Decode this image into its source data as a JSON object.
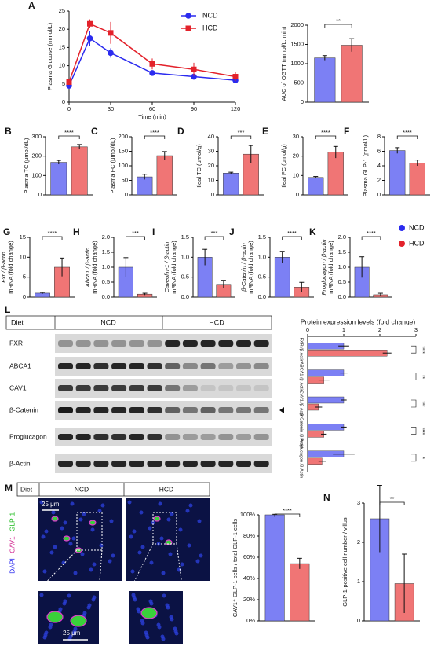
{
  "chart_data": [
    {
      "type": "line",
      "panel": "A",
      "ylabel": "Plasma Glucose (mmol/L)",
      "xlabel": "Time (min)",
      "x": [
        0,
        15,
        30,
        60,
        90,
        120
      ],
      "xlim": [
        0,
        120
      ],
      "xticks": [
        0,
        30,
        60,
        90,
        120
      ],
      "ylim": [
        0,
        25
      ],
      "yticks": [
        0,
        5,
        10,
        15,
        20,
        25
      ],
      "series": [
        {
          "name": "NCD",
          "color": "#2b2bef",
          "marker": "circle",
          "values": [
            4.5,
            17.5,
            13.5,
            8,
            7,
            6
          ],
          "errors": [
            0.6,
            2,
            1.3,
            0.6,
            0.8,
            0.7
          ]
        },
        {
          "name": "HCD",
          "color": "#e3222b",
          "marker": "square",
          "values": [
            5.5,
            21.5,
            19,
            10.5,
            9,
            7
          ],
          "errors": [
            0.6,
            1.2,
            3,
            1.5,
            1.8,
            1.2
          ]
        }
      ]
    },
    {
      "type": "bar",
      "ylabel": [
        "AUC of OGTT  (mmol/L. min)"
      ],
      "ylim": [
        0,
        2000
      ],
      "yticks": [
        0,
        500,
        1000,
        1500,
        2000
      ],
      "values": [
        1150,
        1480
      ],
      "errors": [
        60,
        170
      ],
      "colors": [
        "#7c80f4",
        "#f07575"
      ],
      "significance": "**"
    },
    {
      "type": "bar",
      "panel": "B",
      "ylabel": [
        "Plasma TC (μmol/dL)"
      ],
      "ylim": [
        0,
        300
      ],
      "yticks": [
        0,
        100,
        200,
        300
      ],
      "values": [
        168,
        248
      ],
      "errors": [
        10,
        12
      ],
      "colors": [
        "#7c80f4",
        "#f07575"
      ],
      "significance": "****"
    },
    {
      "type": "bar",
      "panel": "C",
      "ylabel": [
        "Plasma FC (μmol/dL)"
      ],
      "ylim": [
        0,
        200
      ],
      "yticks": [
        0,
        50,
        100,
        150,
        200
      ],
      "values": [
        62,
        135
      ],
      "errors": [
        9,
        14
      ],
      "colors": [
        "#7c80f4",
        "#f07575"
      ],
      "significance": "****"
    },
    {
      "type": "bar",
      "panel": "D",
      "ylabel": [
        "Ileal TC (μmol/g)"
      ],
      "ylim": [
        0,
        40
      ],
      "yticks": [
        0,
        10,
        20,
        30,
        40
      ],
      "values": [
        15,
        28
      ],
      "errors": [
        0.6,
        6
      ],
      "colors": [
        "#7c80f4",
        "#f07575"
      ],
      "significance": "***"
    },
    {
      "type": "bar",
      "panel": "E",
      "ylabel": [
        "Ileal FC (μmol/g)"
      ],
      "ylim": [
        0,
        30
      ],
      "yticks": [
        0,
        10,
        20,
        30
      ],
      "values": [
        9,
        22
      ],
      "errors": [
        0.5,
        3
      ],
      "colors": [
        "#7c80f4",
        "#f07575"
      ],
      "significance": "****"
    },
    {
      "type": "bar",
      "panel": "F",
      "ylabel": [
        "Plasma GLP-1 (pmol/L)"
      ],
      "ylim": [
        0,
        8
      ],
      "yticks": [
        0,
        2,
        4,
        6,
        8
      ],
      "values": [
        6.1,
        4.4
      ],
      "errors": [
        0.4,
        0.4
      ],
      "colors": [
        "#7c80f4",
        "#f07575"
      ],
      "significance": "****"
    },
    {
      "type": "bar",
      "panel": "G",
      "ylabel": [
        "Fxr / β-actin",
        "mRNA (fold change)"
      ],
      "ylim": [
        0,
        15
      ],
      "yticks": [
        0,
        5,
        10,
        15
      ],
      "values": [
        1,
        7.5
      ],
      "errors": [
        0.2,
        2.3
      ],
      "colors": [
        "#7c80f4",
        "#f07575"
      ],
      "significance": "****"
    },
    {
      "type": "bar",
      "panel": "H",
      "ylabel": [
        "Abca1 / β-actin",
        "mRNA (fold change)"
      ],
      "ylim": [
        0,
        2
      ],
      "yticks": [
        {
          "value": 0,
          "label": "0.0"
        },
        0.5,
        {
          "value": 1,
          "label": "1.0"
        },
        1.5,
        {
          "value": 2,
          "label": "2.0"
        }
      ],
      "values": [
        1,
        0.1
      ],
      "errors": [
        0.32,
        0.03
      ],
      "colors": [
        "#7c80f4",
        "#f07575"
      ],
      "significance": "***"
    },
    {
      "type": "bar",
      "panel": "I",
      "ylabel": [
        "Caveolin-1 / β-actin",
        "mRNA (fold change)"
      ],
      "ylim": [
        0,
        1.5
      ],
      "yticks": [
        {
          "value": 0,
          "label": "0.0"
        },
        0.5,
        {
          "value": 1,
          "label": "1.0"
        },
        1.5
      ],
      "values": [
        1,
        0.32
      ],
      "errors": [
        0.2,
        0.1
      ],
      "colors": [
        "#7c80f4",
        "#f07575"
      ],
      "significance": "***"
    },
    {
      "type": "bar",
      "panel": "J",
      "ylabel": [
        "β-Catenin / β-actin",
        "mRNA (fold change)"
      ],
      "ylim": [
        0,
        1.5
      ],
      "yticks": [
        {
          "value": 0,
          "label": "0.0"
        },
        0.5,
        {
          "value": 1,
          "label": "1.0"
        },
        1.5
      ],
      "values": [
        1,
        0.25
      ],
      "errors": [
        0.15,
        0.12
      ],
      "colors": [
        "#7c80f4",
        "#f07575"
      ],
      "significance": "****"
    },
    {
      "type": "bar",
      "panel": "K",
      "ylabel": [
        "Proglucagon / β-actin",
        "mRNA (fold change)"
      ],
      "ylim": [
        0,
        2
      ],
      "yticks": [
        {
          "value": 0,
          "label": "0.0"
        },
        0.5,
        {
          "value": 1,
          "label": "1.0"
        },
        1.5,
        {
          "value": 2,
          "label": "2.0"
        }
      ],
      "values": [
        1,
        0.08
      ],
      "errors": [
        0.35,
        0.05
      ],
      "colors": [
        "#7c80f4",
        "#f07575"
      ],
      "significance": "****",
      "legend": [
        {
          "name": "NCD",
          "color": "#2b2bef"
        },
        {
          "name": "HCD",
          "color": "#e3222b"
        }
      ]
    },
    {
      "type": "hbar",
      "title": "Protein expression levels (fold change)",
      "xlim": [
        0,
        3
      ],
      "xticks": [
        0,
        1,
        2,
        3
      ],
      "categories": [
        "FXR /β-Actin",
        "ABCA1 /β-Actin",
        "CAV1 /β-Actin",
        "β-Catenin /β-Actin",
        "Proglucagon /β-Actin"
      ],
      "series": [
        {
          "name": "NCD",
          "color": "#7c80f4",
          "values": [
            1,
            1,
            1,
            1,
            1
          ],
          "errors": [
            0.15,
            0.1,
            0.08,
            0.08,
            0.3
          ]
        },
        {
          "name": "HCD",
          "color": "#f07575",
          "values": [
            2.2,
            0.45,
            0.3,
            0.45,
            0.4
          ],
          "errors": [
            0.12,
            0.15,
            0.1,
            0.08,
            0.1
          ]
        }
      ],
      "significance": [
        "****",
        "**",
        "***",
        "****",
        "*"
      ]
    },
    {
      "type": "bar",
      "ylabel": [
        "CAV1⁺ GLP-1 cells / total GLP-1 cells"
      ],
      "ylim": [
        0,
        100
      ],
      "yticks": [
        {
          "value": 0,
          "label": "0%"
        },
        {
          "value": 20,
          "label": "20%"
        },
        {
          "value": 40,
          "label": "40%"
        },
        {
          "value": 60,
          "label": "60%"
        },
        {
          "value": 80,
          "label": "80%"
        },
        {
          "value": 100,
          "label": "100%"
        }
      ],
      "values": [
        100,
        54
      ],
      "errors": [
        0.5,
        5
      ],
      "colors": [
        "#7c80f4",
        "#f07575"
      ],
      "significance": "****"
    },
    {
      "type": "bar",
      "panel": "N",
      "ylabel": [
        "GLP-1-positive cell number / villus"
      ],
      "ylim": [
        0,
        3
      ],
      "yticks": [
        0,
        1,
        2,
        3
      ],
      "values": [
        2.6,
        0.95
      ],
      "errors": [
        0.85,
        0.75
      ],
      "colors": [
        "#7c80f4",
        "#f07575"
      ],
      "significance": "**"
    }
  ],
  "blot": {
    "panel": "L",
    "diet_label": "Diet",
    "groups": [
      "NCD",
      "HCD"
    ],
    "proteins": [
      "FXR",
      "ABCA1",
      "CAV1",
      "β-Catenin",
      "Proglucagon",
      "β-Actin"
    ]
  },
  "imaging": {
    "panel": "M",
    "diet_label": "Diet",
    "groups": [
      "NCD",
      "HCD"
    ],
    "stains": [
      "DAPI",
      "CAV1",
      "GLP-1"
    ],
    "scale_bars": [
      "25 μm",
      "25 μm"
    ]
  }
}
